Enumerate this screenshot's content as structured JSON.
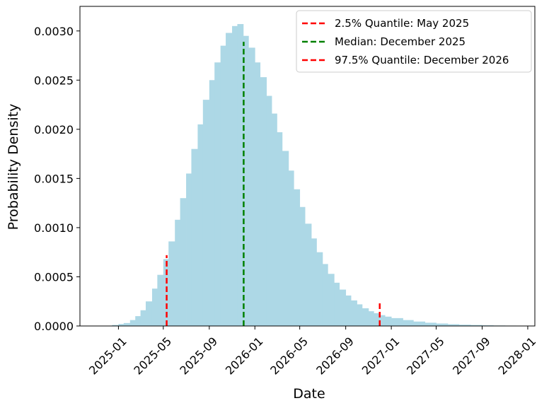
{
  "chart_data": {
    "type": "bar",
    "xlabel": "Date",
    "ylabel": "Probability Density",
    "xlim": [
      "2024-09-20",
      "2028-01-20"
    ],
    "ylim": [
      0,
      0.00325
    ],
    "x_ticks": [
      "2025-01",
      "2025-05",
      "2025-09",
      "2026-01",
      "2026-05",
      "2026-09",
      "2027-01",
      "2027-05",
      "2027-09",
      "2028-01"
    ],
    "y_ticks": [
      "0.0000",
      "0.0005",
      "0.0010",
      "0.0015",
      "0.0020",
      "0.0025",
      "0.0030"
    ],
    "grid": false,
    "legend_position": "top-right",
    "histogram_color": "#add8e6",
    "histogram": {
      "x": [
        "2024-12-01",
        "2024-12-15",
        "2025-01-01",
        "2025-01-15",
        "2025-02-01",
        "2025-02-15",
        "2025-03-01",
        "2025-03-15",
        "2025-04-01",
        "2025-04-15",
        "2025-05-01",
        "2025-05-15",
        "2025-06-01",
        "2025-06-15",
        "2025-07-01",
        "2025-07-15",
        "2025-08-01",
        "2025-08-15",
        "2025-09-01",
        "2025-09-15",
        "2025-10-01",
        "2025-10-15",
        "2025-11-01",
        "2025-11-15",
        "2025-12-01",
        "2025-12-15",
        "2026-01-01",
        "2026-01-15",
        "2026-02-01",
        "2026-02-15",
        "2026-03-01",
        "2026-03-15",
        "2026-04-01",
        "2026-04-15",
        "2026-05-01",
        "2026-05-15",
        "2026-06-01",
        "2026-06-15",
        "2026-07-01",
        "2026-07-15",
        "2026-08-01",
        "2026-08-15",
        "2026-09-01",
        "2026-09-15",
        "2026-10-01",
        "2026-10-15",
        "2026-11-01",
        "2026-11-15",
        "2026-12-01",
        "2026-12-15",
        "2027-01-01",
        "2027-02-01",
        "2027-03-01",
        "2027-04-01",
        "2027-05-01",
        "2027-06-01",
        "2027-07-01",
        "2027-08-01",
        "2027-09-01",
        "2027-10-01",
        "2027-11-01",
        "2027-12-01",
        "2028-01-01"
      ],
      "density": [
        0.0,
        1e-05,
        2e-05,
        3e-05,
        6e-05,
        0.0001,
        0.00016,
        0.00025,
        0.00038,
        0.00052,
        0.00068,
        0.00086,
        0.00108,
        0.0013,
        0.00155,
        0.0018,
        0.00205,
        0.0023,
        0.0025,
        0.00268,
        0.00285,
        0.00298,
        0.00305,
        0.00307,
        0.00295,
        0.00283,
        0.00268,
        0.00253,
        0.00234,
        0.00216,
        0.00197,
        0.00178,
        0.00158,
        0.00139,
        0.00121,
        0.00104,
        0.00089,
        0.00075,
        0.00063,
        0.00053,
        0.00044,
        0.00037,
        0.00031,
        0.00026,
        0.00022,
        0.00018,
        0.00015,
        0.00013,
        0.00011,
        9.5e-05,
        8e-05,
        6e-05,
        4.5e-05,
        3.3e-05,
        2.5e-05,
        1.8e-05,
        1.3e-05,
        1e-05,
        7e-06,
        5e-06,
        4e-06,
        3e-06,
        2e-06
      ]
    },
    "quantile_lines": [
      {
        "name": "2.5% Quantile: May 2025",
        "x": "2025-05-10",
        "y": 0.00072,
        "color": "#ff0000"
      },
      {
        "name": "Median: December 2025",
        "x": "2025-12-02",
        "y": 0.00289,
        "color": "#008000"
      },
      {
        "name": "97.5% Quantile: December 2026",
        "x": "2026-12-01",
        "y": 0.00023,
        "color": "#ff0000"
      }
    ]
  }
}
